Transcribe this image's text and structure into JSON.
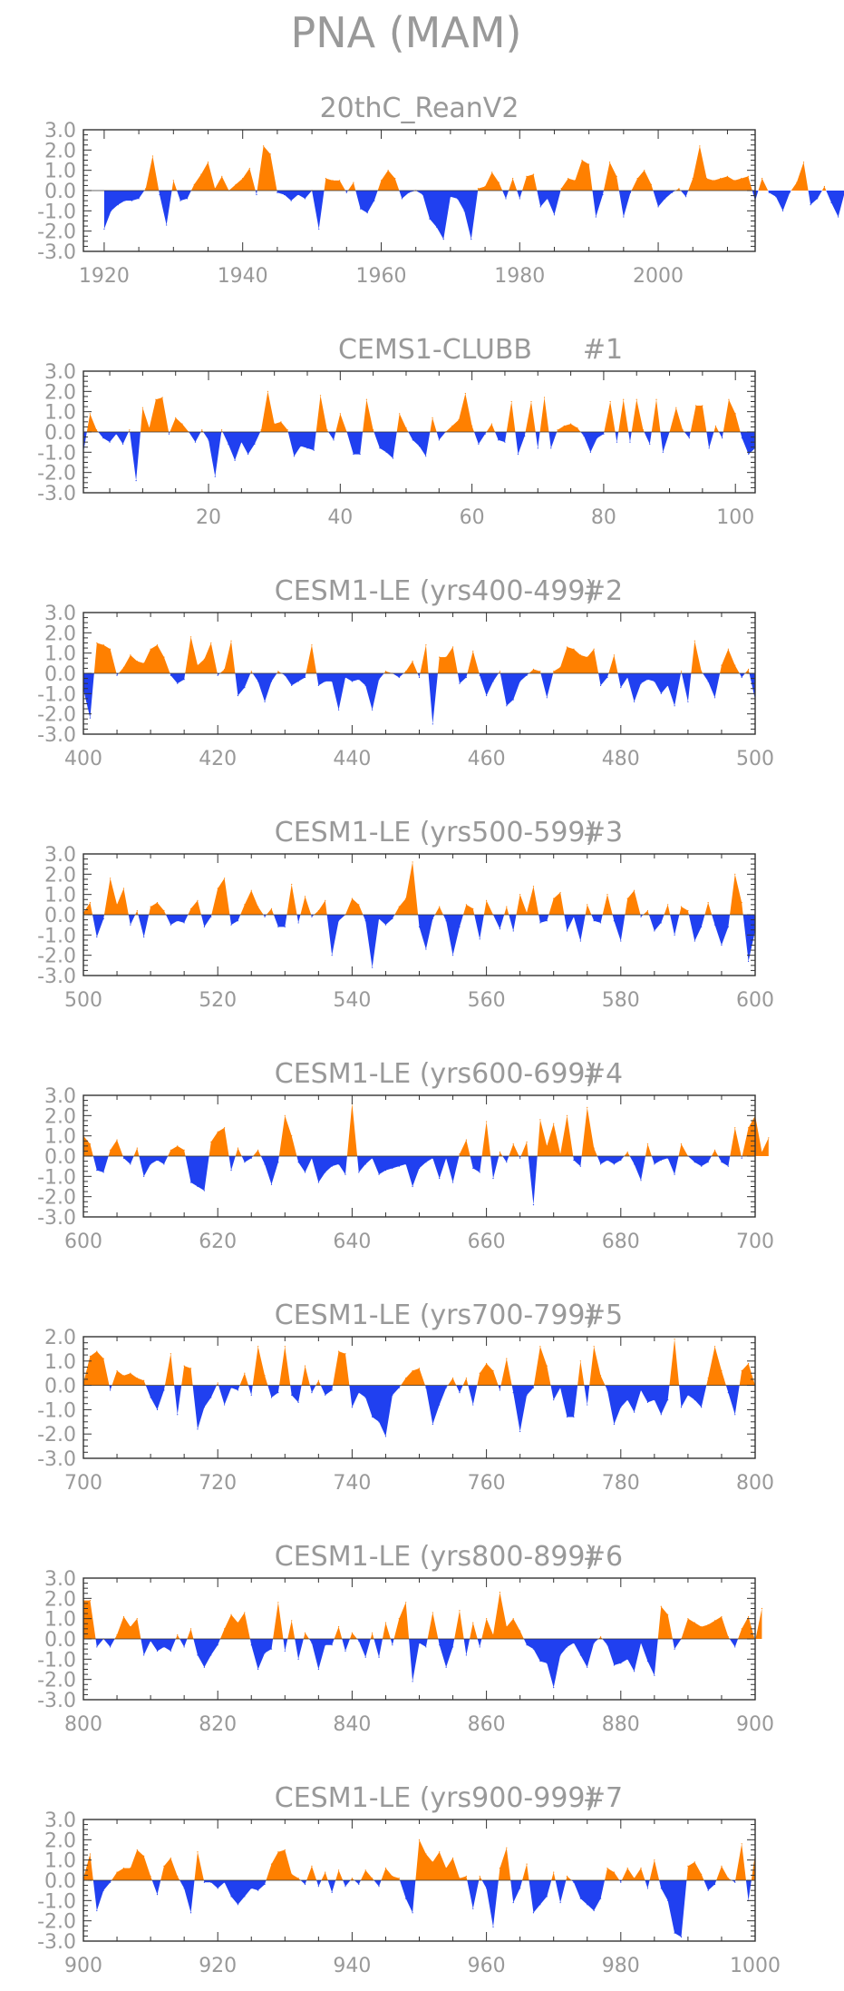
{
  "title": "PNA (MAM)",
  "colors": {
    "positive": "#ff8000",
    "negative": "#2040f0",
    "frame": "#333333",
    "label": "#999999"
  },
  "chart_data": [
    {
      "type": "area",
      "title": "20thC_ReanV2",
      "xlim": [
        1917,
        2014
      ],
      "ylim": [
        -3,
        3
      ],
      "xticks": [
        1920,
        1940,
        1960,
        1980,
        2000
      ],
      "yticks": [
        3,
        2,
        1,
        0,
        -1,
        -2,
        -3
      ],
      "ytick_labels": [
        "3.0",
        "2.0",
        "1.0",
        "0.0",
        "-1.0",
        "-2.0",
        "-3.0"
      ],
      "x_start": 1920,
      "values": [
        -1.9,
        -1.0,
        -0.7,
        -0.5,
        -0.5,
        -0.4,
        0.1,
        1.7,
        -0.2,
        -1.7,
        0.5,
        -0.5,
        -0.4,
        0.3,
        0.8,
        1.4,
        0.1,
        0.7,
        0.0,
        0.3,
        0.6,
        1.1,
        -0.2,
        2.2,
        1.8,
        -0.1,
        -0.2,
        -0.5,
        -0.2,
        -0.4,
        0.0,
        -1.9,
        0.6,
        0.5,
        0.5,
        -0.1,
        0.4,
        -0.9,
        -1.1,
        -0.5,
        0.5,
        1.0,
        0.6,
        -0.4,
        -0.1,
        0.0,
        -0.2,
        -1.4,
        -1.8,
        -2.4,
        -0.3,
        -0.4,
        -1.0,
        -2.4,
        0.1,
        0.2,
        0.9,
        0.4,
        -0.4,
        0.6,
        -0.4,
        0.7,
        0.8,
        -0.8,
        -0.4,
        -1.2,
        0.1,
        0.6,
        0.5,
        1.5,
        1.3,
        -1.3,
        -0.2,
        1.4,
        0.7,
        -1.3,
        -0.1,
        0.6,
        1.0,
        0.3,
        -0.8,
        -0.4,
        -0.1,
        0.1,
        -0.3,
        0.6,
        2.2,
        0.6,
        0.5,
        0.6,
        0.7,
        0.5,
        0.6,
        0.7,
        -0.5,
        0.6,
        -0.1,
        -0.3,
        -1.0,
        -0.1,
        0.4,
        1.4,
        -0.7,
        -0.4,
        0.2,
        -0.6,
        -1.3,
        0.0,
        0.1,
        0.1
      ]
    },
    {
      "type": "area",
      "title": "CEMS1-CLUBB",
      "tag": "#1",
      "xlim": [
        1,
        103
      ],
      "ylim": [
        -3,
        3
      ],
      "xticks": [
        20,
        40,
        60,
        80,
        100
      ],
      "yticks": [
        3,
        2,
        1,
        0,
        -1,
        -2,
        -3
      ],
      "ytick_labels": [
        "3.0",
        "2.0",
        "1.0",
        "0.0",
        "-1.0",
        "-2.0",
        "-3.0"
      ],
      "x_start": 1,
      "values": [
        -1.0,
        0.9,
        0.1,
        -0.3,
        -0.5,
        -0.1,
        -0.6,
        0.1,
        -2.4,
        1.2,
        0.2,
        1.6,
        1.7,
        -0.1,
        0.7,
        0.4,
        0.0,
        -0.5,
        0.1,
        -0.4,
        -2.2,
        0.1,
        -0.6,
        -1.4,
        -0.5,
        -1.1,
        -0.6,
        0.1,
        2.0,
        0.4,
        0.5,
        0.1,
        -1.2,
        -0.7,
        -0.8,
        -0.9,
        1.8,
        0.1,
        -0.4,
        0.9,
        0.0,
        -1.1,
        -1.1,
        1.6,
        0.1,
        -0.8,
        -1.0,
        -1.3,
        0.9,
        0.2,
        -0.4,
        -0.7,
        -1.2,
        0.7,
        -0.4,
        0.0,
        0.3,
        0.6,
        1.9,
        0.3,
        -0.6,
        -0.1,
        0.4,
        -0.4,
        -0.5,
        1.5,
        -1.1,
        -0.2,
        1.5,
        -0.8,
        1.7,
        -0.8,
        0.1,
        0.3,
        0.4,
        0.2,
        -0.2,
        -1.0,
        -0.3,
        -0.1,
        1.5,
        -0.5,
        1.6,
        -0.5,
        1.6,
        0.1,
        -0.6,
        1.6,
        -1.0,
        0.0,
        1.2,
        0.1,
        -0.3,
        1.3,
        1.3,
        -0.8,
        0.3,
        -0.3,
        1.6,
        0.9,
        -0.3,
        -1.1,
        -0.8
      ]
    },
    {
      "type": "area",
      "title": "CESM1-LE (yrs400-499)",
      "tag": "#2",
      "xlim": [
        400,
        500
      ],
      "ylim": [
        -3,
        3
      ],
      "xticks": [
        400,
        420,
        440,
        460,
        480,
        500
      ],
      "yticks": [
        3,
        2,
        1,
        0,
        -1,
        -2,
        -3
      ],
      "ytick_labels": [
        "3.0",
        "2.0",
        "1.0",
        "0.0",
        "-1.0",
        "-2.0",
        "-3.0"
      ],
      "x_start": 400,
      "values": [
        -0.8,
        -2.2,
        1.5,
        1.4,
        1.2,
        -0.1,
        0.3,
        0.9,
        0.6,
        0.5,
        1.2,
        1.4,
        0.8,
        -0.1,
        -0.5,
        -0.3,
        1.8,
        0.4,
        0.7,
        1.5,
        -0.1,
        0.2,
        1.6,
        -1.1,
        -0.7,
        0.1,
        -0.4,
        -1.4,
        -0.4,
        0.1,
        -0.1,
        -0.6,
        -0.4,
        -0.2,
        1.4,
        -0.6,
        -0.4,
        -0.4,
        -1.8,
        -0.2,
        -0.4,
        -0.3,
        -0.6,
        -1.8,
        -0.3,
        0.1,
        0.0,
        -0.2,
        0.1,
        0.6,
        -0.2,
        1.4,
        -2.5,
        0.8,
        0.8,
        1.3,
        -0.5,
        -0.2,
        1.1,
        -0.1,
        -1.1,
        -0.4,
        0.1,
        -1.6,
        -1.3,
        -0.4,
        -0.1,
        0.2,
        0.1,
        -1.2,
        0.1,
        0.3,
        1.3,
        1.2,
        0.9,
        0.8,
        1.2,
        -0.6,
        -0.2,
        0.9,
        -0.7,
        -0.2,
        -1.4,
        -0.5,
        -0.3,
        -0.4,
        -1.0,
        -0.6,
        -1.6,
        0.1,
        -1.4,
        1.6,
        0.1,
        -0.4,
        -1.2,
        0.4,
        1.2,
        0.4,
        -0.2,
        0.2,
        -1.3
      ]
    },
    {
      "type": "area",
      "title": "CESM1-LE (yrs500-599)",
      "tag": "#3",
      "xlim": [
        500,
        600
      ],
      "ylim": [
        -3,
        3
      ],
      "xticks": [
        500,
        520,
        540,
        560,
        580,
        600
      ],
      "yticks": [
        3,
        2,
        1,
        0,
        -1,
        -2,
        -3
      ],
      "ytick_labels": [
        "3.0",
        "2.0",
        "1.0",
        "0.0",
        "-1.0",
        "-2.0",
        "-3.0"
      ],
      "x_start": 500,
      "values": [
        0.1,
        0.6,
        -1.1,
        -0.2,
        1.8,
        0.5,
        1.3,
        -0.5,
        0.2,
        -1.1,
        0.4,
        0.6,
        0.2,
        -0.5,
        -0.3,
        -0.4,
        0.3,
        0.7,
        -0.6,
        -0.1,
        1.3,
        1.8,
        -0.5,
        -0.3,
        0.5,
        1.2,
        0.4,
        -0.1,
        0.3,
        -0.6,
        -0.6,
        1.5,
        -0.4,
        0.9,
        -0.1,
        0.2,
        0.7,
        -2.0,
        -0.3,
        0.0,
        0.8,
        0.5,
        -0.3,
        -2.6,
        -0.2,
        -0.5,
        -0.2,
        0.4,
        0.8,
        2.6,
        -0.6,
        -1.7,
        -0.2,
        0.4,
        -0.3,
        -2.0,
        -0.6,
        0.5,
        0.3,
        -1.2,
        0.7,
        0.0,
        -0.7,
        0.4,
        -0.8,
        1.0,
        0.1,
        1.4,
        -0.4,
        -0.3,
        0.8,
        1.1,
        -0.8,
        -0.1,
        -1.3,
        0.5,
        -0.3,
        -0.4,
        1.0,
        -0.3,
        -1.3,
        0.8,
        1.2,
        -0.1,
        0.2,
        -0.8,
        -0.4,
        0.5,
        -1.0,
        0.4,
        0.2,
        -1.3,
        -0.6,
        0.6,
        -0.5,
        -1.5,
        -0.6,
        2.0,
        0.6,
        -2.3,
        -0.8
      ]
    },
    {
      "type": "area",
      "title": "CESM1-LE (yrs600-699)",
      "tag": "#4",
      "xlim": [
        600,
        700
      ],
      "ylim": [
        -3,
        3
      ],
      "xticks": [
        600,
        620,
        640,
        660,
        680,
        700
      ],
      "yticks": [
        3,
        2,
        1,
        0,
        -1,
        -2,
        -3
      ],
      "ytick_labels": [
        "3.0",
        "2.0",
        "1.0",
        "0.0",
        "-1.0",
        "-2.0",
        "-3.0"
      ],
      "x_start": 600,
      "values": [
        1.0,
        0.6,
        -0.7,
        -0.8,
        0.3,
        0.8,
        -0.1,
        -0.4,
        0.4,
        -1.0,
        -0.4,
        -0.2,
        -0.4,
        0.3,
        0.5,
        0.3,
        -1.3,
        -1.5,
        -1.7,
        0.7,
        1.2,
        1.4,
        -0.7,
        0.4,
        -0.3,
        -0.1,
        0.3,
        -0.4,
        -1.4,
        -0.3,
        2.0,
        1.0,
        -0.3,
        -0.8,
        -0.1,
        -1.3,
        -0.8,
        -0.5,
        -0.4,
        -0.9,
        2.6,
        -0.8,
        -0.4,
        -0.1,
        -0.9,
        -0.7,
        -0.6,
        -0.5,
        -0.4,
        -1.5,
        -0.6,
        -0.3,
        -0.1,
        -1.1,
        -0.1,
        -1.3,
        0.1,
        0.8,
        -0.6,
        -0.8,
        1.7,
        -1.1,
        0.2,
        -0.3,
        0.6,
        -0.1,
        0.7,
        -2.4,
        1.8,
        0.5,
        1.6,
        0.1,
        2.0,
        -0.2,
        -0.5,
        2.4,
        0.4,
        -0.4,
        -0.2,
        -0.4,
        -0.2,
        0.2,
        -0.4,
        -1.2,
        0.6,
        -0.4,
        -0.2,
        -0.1,
        -0.9,
        0.6,
        0.0,
        -0.3,
        -0.5,
        -0.3,
        0.3,
        -0.3,
        -0.5,
        1.4,
        -0.1,
        1.4,
        2.0,
        0.2,
        0.9
      ]
    },
    {
      "type": "area",
      "title": "CESM1-LE (yrs700-799)",
      "tag": "#5",
      "xlim": [
        700,
        800
      ],
      "ylim": [
        -3,
        2
      ],
      "xticks": [
        700,
        720,
        740,
        760,
        780,
        800
      ],
      "yticks": [
        2,
        1,
        0,
        -1,
        -2,
        -3
      ],
      "ytick_labels": [
        "2.0",
        "1.0",
        "0.0",
        "-1.0",
        "-2.0",
        "-3.0"
      ],
      "x_start": 700,
      "values": [
        0.1,
        1.2,
        1.4,
        1.1,
        -0.2,
        0.6,
        0.4,
        0.5,
        0.3,
        0.2,
        -0.5,
        -1.0,
        -0.2,
        1.3,
        -1.2,
        0.8,
        0.7,
        -1.8,
        -0.9,
        -0.5,
        0.1,
        -0.8,
        -0.1,
        -0.2,
        0.5,
        -0.4,
        1.6,
        0.4,
        -0.5,
        -0.3,
        1.6,
        -0.4,
        -0.7,
        0.8,
        -0.3,
        0.2,
        -0.4,
        -0.2,
        1.4,
        1.3,
        -0.9,
        -0.3,
        -0.5,
        -1.3,
        -1.5,
        -2.1,
        -0.4,
        -0.1,
        0.3,
        0.6,
        0.7,
        -0.1,
        -1.6,
        -0.8,
        -0.1,
        0.3,
        -0.3,
        0.3,
        -0.8,
        0.5,
        0.9,
        0.6,
        -0.2,
        1.1,
        -0.3,
        -1.9,
        -0.4,
        -0.1,
        1.6,
        0.8,
        -0.6,
        -0.1,
        -1.3,
        -1.3,
        1.0,
        -0.8,
        1.6,
        0.4,
        -0.2,
        -1.6,
        -0.9,
        -0.6,
        -1.1,
        -0.2,
        -0.7,
        -0.6,
        -1.2,
        -0.6,
        1.9,
        -0.9,
        -0.4,
        -0.6,
        -0.9,
        0.3,
        1.6,
        0.6,
        -0.3,
        -1.2,
        0.6,
        0.9,
        0.0
      ]
    },
    {
      "type": "area",
      "title": "CESM1-LE (yrs800-899)",
      "tag": "#6",
      "xlim": [
        800,
        900
      ],
      "ylim": [
        -3,
        3
      ],
      "xticks": [
        800,
        820,
        840,
        860,
        880,
        900
      ],
      "yticks": [
        3,
        2,
        1,
        0,
        -1,
        -2,
        -3
      ],
      "ytick_labels": [
        "3.0",
        "2.0",
        "1.0",
        "0.0",
        "-1.0",
        "-2.0",
        "-3.0"
      ],
      "x_start": 800,
      "values": [
        1.9,
        1.9,
        -0.4,
        0.0,
        -0.4,
        0.2,
        1.1,
        0.6,
        1.0,
        -0.8,
        -0.1,
        -0.6,
        -0.4,
        -0.6,
        0.2,
        -0.4,
        0.5,
        -0.8,
        -1.4,
        -0.8,
        -0.3,
        0.5,
        1.2,
        0.8,
        1.3,
        -0.3,
        -1.5,
        -0.7,
        -0.5,
        1.8,
        -0.6,
        0.9,
        -1.0,
        0.3,
        -0.2,
        -1.5,
        -0.3,
        -0.3,
        0.6,
        -0.6,
        0.3,
        -0.1,
        -0.9,
        0.3,
        -0.9,
        0.8,
        -0.3,
        1.0,
        1.8,
        -2.1,
        -0.2,
        -0.4,
        1.3,
        -0.3,
        -1.4,
        -0.4,
        1.4,
        -0.8,
        0.8,
        -0.4,
        1.0,
        0.2,
        2.3,
        0.6,
        1.0,
        0.4,
        -0.3,
        -0.5,
        -1.1,
        -1.2,
        -2.4,
        -0.8,
        -0.4,
        -0.2,
        -0.8,
        -1.4,
        -0.2,
        0.1,
        -0.3,
        -1.3,
        -1.2,
        -1.0,
        -1.6,
        -0.2,
        -1.1,
        -1.8,
        1.6,
        1.2,
        -0.5,
        0.0,
        1.0,
        0.8,
        0.6,
        0.7,
        0.9,
        1.1,
        0.1,
        -0.4,
        0.5,
        1.1,
        -0.1,
        1.5
      ]
    },
    {
      "type": "area",
      "title": "CESM1-LE (yrs900-999)",
      "tag": "#7",
      "xlim": [
        900,
        1000
      ],
      "ylim": [
        -3,
        3
      ],
      "xticks": [
        900,
        920,
        940,
        960,
        980,
        1000
      ],
      "yticks": [
        3,
        2,
        1,
        0,
        -1,
        -2,
        -3
      ],
      "ytick_labels": [
        "3.0",
        "2.0",
        "1.0",
        "0.0",
        "-1.0",
        "-2.0",
        "-3.0"
      ],
      "x_start": 900,
      "values": [
        0.1,
        1.3,
        -1.5,
        -0.5,
        -0.1,
        0.4,
        0.6,
        0.6,
        1.5,
        1.2,
        0.2,
        -0.7,
        0.7,
        1.1,
        0.2,
        -0.4,
        -1.6,
        1.4,
        -0.1,
        -0.1,
        -0.4,
        -0.1,
        -0.8,
        -1.2,
        -0.8,
        -0.4,
        -0.5,
        -0.2,
        0.8,
        1.4,
        1.5,
        0.3,
        0.1,
        -0.2,
        0.7,
        -0.3,
        0.4,
        -0.6,
        0.5,
        -0.3,
        0.1,
        -0.2,
        0.5,
        0.1,
        -0.3,
        0.6,
        0.2,
        0.1,
        -0.9,
        -1.6,
        2.0,
        1.3,
        0.9,
        1.4,
        0.6,
        1.1,
        0.1,
        0.2,
        -1.4,
        0.2,
        -0.4,
        -2.3,
        0.6,
        1.6,
        -1.1,
        -0.4,
        0.8,
        -1.6,
        -1.2,
        -0.8,
        0.4,
        -1.1,
        0.2,
        -0.1,
        -0.9,
        -1.2,
        -1.5,
        -0.9,
        0.6,
        0.4,
        -0.1,
        0.6,
        0.1,
        0.6,
        -0.4,
        1.0,
        -0.4,
        -1.0,
        -2.6,
        -2.8,
        0.7,
        0.9,
        0.3,
        -0.5,
        -0.2,
        0.7,
        0.1,
        -0.1,
        1.8,
        -1.0,
        1.3
      ]
    }
  ]
}
